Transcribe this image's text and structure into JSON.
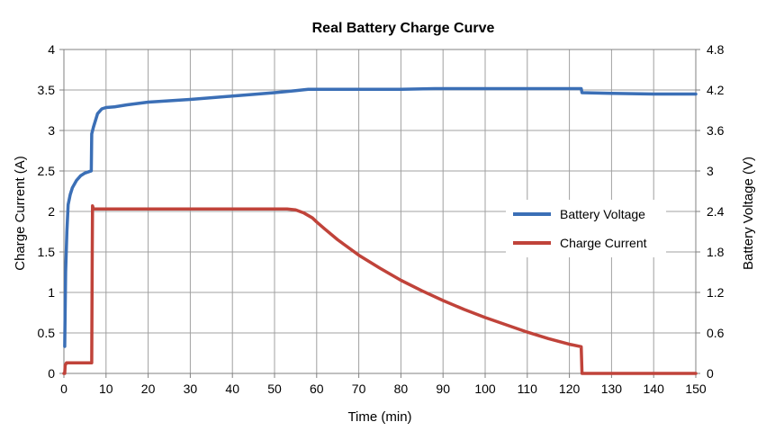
{
  "chart_data": {
    "type": "line",
    "title": "Real Battery Charge Curve",
    "xlabel": "Time (min)",
    "ylabel_left": "Charge Current (A)",
    "ylabel_right": "Battery Voltage (V)",
    "xlim": [
      0,
      150
    ],
    "ylim_left": [
      0,
      4
    ],
    "ylim_right": [
      0,
      4.8
    ],
    "x_ticks": [
      "0",
      "10",
      "20",
      "30",
      "40",
      "50",
      "60",
      "70",
      "80",
      "90",
      "100",
      "110",
      "120",
      "130",
      "140",
      "150"
    ],
    "y_left_ticks": [
      "0",
      "0.5",
      "1",
      "1.5",
      "2",
      "2.5",
      "3",
      "3.5",
      "4"
    ],
    "y_right_ticks": [
      "0",
      "0.6",
      "1.2",
      "1.8",
      "2.4",
      "3",
      "3.6",
      "4.2",
      "4.8"
    ],
    "grid": true,
    "legend_position": "right",
    "series": [
      {
        "name": "Battery Voltage",
        "axis": "right",
        "color": "#3b6fb6",
        "points": [
          [
            0.2,
            0.4
          ],
          [
            0.4,
            1.5
          ],
          [
            0.7,
            2.1
          ],
          [
            1.0,
            2.5
          ],
          [
            1.5,
            2.65
          ],
          [
            2.0,
            2.75
          ],
          [
            3.0,
            2.86
          ],
          [
            4.0,
            2.93
          ],
          [
            5.0,
            2.97
          ],
          [
            6.0,
            2.99
          ],
          [
            6.5,
            3.0
          ],
          [
            6.6,
            3.55
          ],
          [
            7.0,
            3.65
          ],
          [
            8.0,
            3.85
          ],
          [
            9.0,
            3.92
          ],
          [
            10.0,
            3.94
          ],
          [
            12,
            3.95
          ],
          [
            15,
            3.98
          ],
          [
            20,
            4.02
          ],
          [
            25,
            4.04
          ],
          [
            30,
            4.06
          ],
          [
            32,
            4.07
          ],
          [
            40,
            4.11
          ],
          [
            50,
            4.16
          ],
          [
            55,
            4.19
          ],
          [
            58,
            4.21
          ],
          [
            60,
            4.21
          ],
          [
            70,
            4.21
          ],
          [
            80,
            4.21
          ],
          [
            88,
            4.22
          ],
          [
            100,
            4.22
          ],
          [
            110,
            4.22
          ],
          [
            122,
            4.22
          ],
          [
            122.8,
            4.22
          ],
          [
            123,
            4.16
          ],
          [
            130,
            4.15
          ],
          [
            140,
            4.14
          ],
          [
            150,
            4.14
          ]
        ]
      },
      {
        "name": "Charge Current",
        "axis": "left",
        "color": "#c0433a",
        "points": [
          [
            0,
            0
          ],
          [
            0.2,
            0
          ],
          [
            0.3,
            0.1
          ],
          [
            0.6,
            0.13
          ],
          [
            1,
            0.13
          ],
          [
            6.6,
            0.13
          ],
          [
            6.7,
            1.35
          ],
          [
            6.8,
            2.07
          ],
          [
            7.0,
            2.03
          ],
          [
            10,
            2.03
          ],
          [
            20,
            2.03
          ],
          [
            30,
            2.03
          ],
          [
            40,
            2.03
          ],
          [
            50,
            2.03
          ],
          [
            53,
            2.03
          ],
          [
            55,
            2.02
          ],
          [
            57,
            1.98
          ],
          [
            59,
            1.92
          ],
          [
            60,
            1.87
          ],
          [
            62,
            1.78
          ],
          [
            65,
            1.65
          ],
          [
            70,
            1.46
          ],
          [
            75,
            1.3
          ],
          [
            80,
            1.15
          ],
          [
            85,
            1.02
          ],
          [
            90,
            0.9
          ],
          [
            95,
            0.79
          ],
          [
            100,
            0.69
          ],
          [
            105,
            0.6
          ],
          [
            110,
            0.51
          ],
          [
            115,
            0.43
          ],
          [
            120,
            0.36
          ],
          [
            122.8,
            0.33
          ],
          [
            123,
            0
          ],
          [
            130,
            0
          ],
          [
            140,
            0
          ],
          [
            150,
            0
          ]
        ]
      }
    ]
  }
}
